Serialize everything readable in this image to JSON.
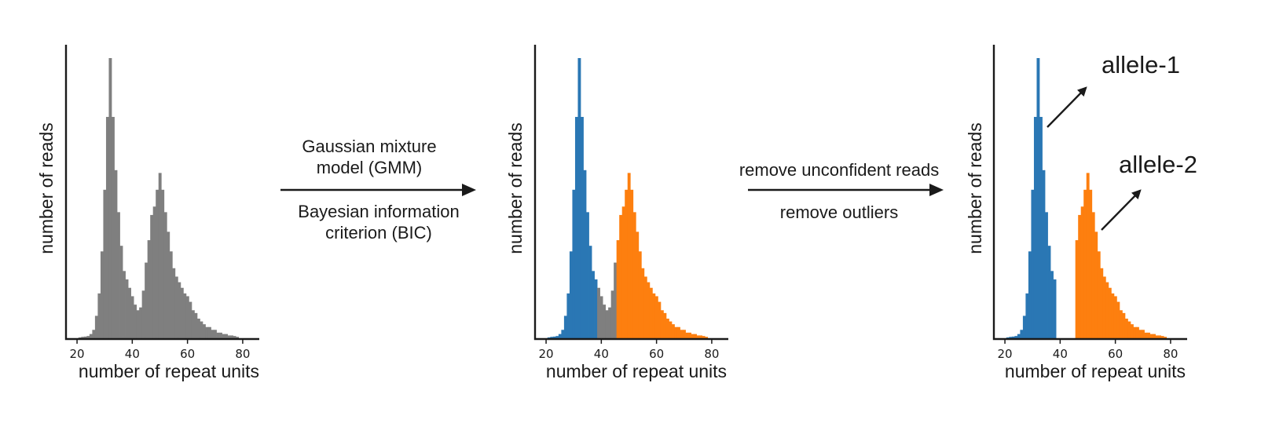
{
  "colors": {
    "gray": "#7f7f7f",
    "blue": "#2a77b4",
    "orange": "#fd7f0f",
    "ink": "#1a1a1a"
  },
  "chart_data": [
    {
      "type": "bar",
      "xlabel": "number of repeat units",
      "ylabel": "number of reads",
      "xlim": [
        16,
        86
      ],
      "xticks": [
        20,
        40,
        60,
        80
      ],
      "series": [
        {
          "color": "gray",
          "x": [
            21,
            22,
            23,
            24,
            25,
            26,
            27,
            28,
            29,
            30,
            31,
            32,
            33,
            34,
            35,
            36,
            37,
            38,
            39,
            40,
            41,
            42,
            43,
            44,
            45,
            46,
            47,
            48,
            49,
            50,
            51,
            52,
            53,
            54,
            55,
            56,
            57,
            58,
            59,
            60,
            61,
            62,
            63,
            64,
            65,
            66,
            67,
            68,
            69,
            70,
            71,
            72,
            73,
            74,
            75,
            76,
            77,
            78
          ],
          "values": [
            0.003,
            0.005,
            0.006,
            0.008,
            0.015,
            0.03,
            0.08,
            0.16,
            0.31,
            0.53,
            0.79,
            1.0,
            0.79,
            0.6,
            0.45,
            0.33,
            0.24,
            0.21,
            0.18,
            0.15,
            0.12,
            0.1,
            0.11,
            0.17,
            0.27,
            0.35,
            0.44,
            0.47,
            0.53,
            0.59,
            0.53,
            0.45,
            0.38,
            0.31,
            0.25,
            0.22,
            0.2,
            0.18,
            0.16,
            0.15,
            0.13,
            0.1,
            0.09,
            0.07,
            0.06,
            0.05,
            0.04,
            0.04,
            0.03,
            0.03,
            0.02,
            0.02,
            0.015,
            0.015,
            0.01,
            0.01,
            0.008,
            0.005
          ]
        }
      ]
    },
    {
      "type": "bar",
      "xlabel": "number of repeat units",
      "ylabel": "number of reads",
      "xlim": [
        16,
        86
      ],
      "xticks": [
        20,
        40,
        60,
        80
      ],
      "series": [
        {
          "color": "blue",
          "x": [
            21,
            22,
            23,
            24,
            25,
            26,
            27,
            28,
            29,
            30,
            31,
            32,
            33,
            34,
            35,
            36,
            37,
            38
          ],
          "values": [
            0.003,
            0.005,
            0.006,
            0.008,
            0.015,
            0.03,
            0.08,
            0.16,
            0.31,
            0.53,
            0.79,
            1.0,
            0.79,
            0.6,
            0.45,
            0.33,
            0.24,
            0.21
          ]
        },
        {
          "color": "gray",
          "x": [
            39,
            40,
            41,
            42,
            43,
            44,
            45
          ],
          "values": [
            0.18,
            0.15,
            0.12,
            0.1,
            0.11,
            0.17,
            0.27
          ]
        },
        {
          "color": "orange",
          "x": [
            46,
            47,
            48,
            49,
            50,
            51,
            52,
            53,
            54,
            55,
            56,
            57,
            58,
            59,
            60,
            61,
            62,
            63,
            64,
            65,
            66,
            67,
            68,
            69,
            70,
            71,
            72,
            73,
            74,
            75,
            76,
            77,
            78
          ],
          "values": [
            0.35,
            0.44,
            0.47,
            0.53,
            0.59,
            0.53,
            0.45,
            0.38,
            0.31,
            0.25,
            0.22,
            0.2,
            0.18,
            0.16,
            0.15,
            0.13,
            0.1,
            0.09,
            0.07,
            0.06,
            0.05,
            0.04,
            0.04,
            0.03,
            0.03,
            0.02,
            0.02,
            0.015,
            0.015,
            0.01,
            0.01,
            0.008,
            0.005
          ]
        }
      ]
    },
    {
      "type": "bar",
      "xlabel": "number of repeat units",
      "ylabel": "number of reads",
      "xlim": [
        16,
        86
      ],
      "xticks": [
        20,
        40,
        60,
        80
      ],
      "series": [
        {
          "color": "blue",
          "x": [
            21,
            22,
            23,
            24,
            25,
            26,
            27,
            28,
            29,
            30,
            31,
            32,
            33,
            34,
            35,
            36,
            37,
            38
          ],
          "values": [
            0.003,
            0.005,
            0.006,
            0.008,
            0.015,
            0.03,
            0.08,
            0.16,
            0.31,
            0.53,
            0.79,
            1.0,
            0.79,
            0.6,
            0.45,
            0.33,
            0.24,
            0.21
          ]
        },
        {
          "color": "orange",
          "x": [
            46,
            47,
            48,
            49,
            50,
            51,
            52,
            53,
            54,
            55,
            56,
            57,
            58,
            59,
            60,
            61,
            62,
            63,
            64,
            65,
            66,
            67,
            68,
            69,
            70,
            71,
            72,
            73,
            74,
            75,
            76,
            77,
            78
          ],
          "values": [
            0.35,
            0.44,
            0.47,
            0.53,
            0.59,
            0.53,
            0.45,
            0.38,
            0.31,
            0.25,
            0.22,
            0.2,
            0.18,
            0.16,
            0.15,
            0.13,
            0.1,
            0.09,
            0.07,
            0.06,
            0.05,
            0.04,
            0.04,
            0.03,
            0.03,
            0.02,
            0.02,
            0.015,
            0.015,
            0.01,
            0.01,
            0.008,
            0.005
          ]
        }
      ],
      "annotations": [
        "allele-1",
        "allele-2"
      ]
    }
  ],
  "steps": [
    {
      "above": [
        "Gaussian mixture",
        "model  (GMM)"
      ],
      "below": [
        "Bayesian information",
        "criterion (BIC)"
      ]
    },
    {
      "above": [
        "remove unconfident reads"
      ],
      "below": [
        "remove outliers"
      ]
    }
  ]
}
